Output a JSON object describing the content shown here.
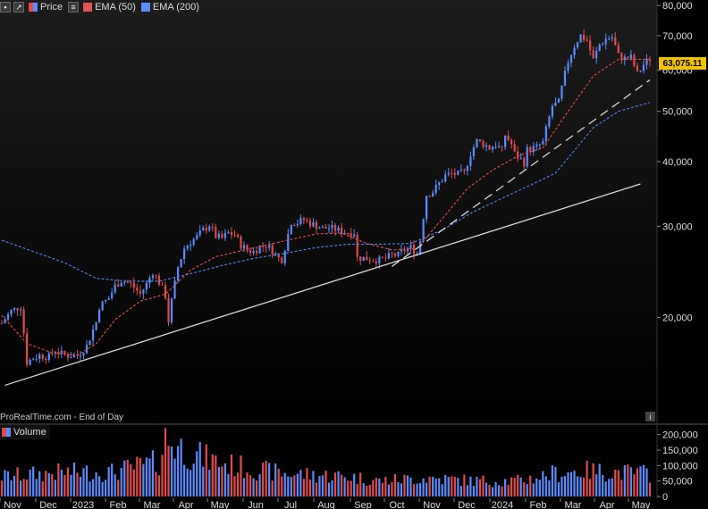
{
  "legend": {
    "items": [
      {
        "label": "Price",
        "color": "#5b8cff"
      },
      {
        "label": "EMA (50)",
        "color": "#e05555"
      },
      {
        "label": "EMA (200)",
        "color": "#5b8cff"
      }
    ]
  },
  "source_label": "ProRealTime.com - End of Day",
  "volume_label": "Volume",
  "last_price_label": "63,075.11",
  "info_icon": "i",
  "colors": {
    "up": "#5b8cff",
    "down": "#e24b4b",
    "ema50": "#d94848",
    "ema200": "#4f7fe0",
    "badge": "#f2c200"
  },
  "chart_data": {
    "type": "candlestick",
    "x_axis": {
      "labels": [
        "Nov",
        "Dec",
        "2023",
        "Feb",
        "Mar",
        "Apr",
        "May",
        "Jun",
        "Jul",
        "Aug",
        "Sep",
        "Oct",
        "Nov",
        "Dec",
        "2024",
        "Feb",
        "Mar",
        "Apr",
        "May"
      ]
    },
    "price_axis": {
      "scale": "log",
      "ticks": [
        {
          "value": 20000,
          "label": "20,000"
        },
        {
          "value": 30000,
          "label": "30,000"
        },
        {
          "value": 40000,
          "label": "40,000"
        },
        {
          "value": 50000,
          "label": "50,000"
        },
        {
          "value": 60000,
          "label": "60,000"
        },
        {
          "value": 70000,
          "label": "70,000"
        },
        {
          "value": 80000,
          "label": "80,000"
        }
      ],
      "ylim": [
        12500,
        82000
      ]
    },
    "volume_axis": {
      "ticks": [
        {
          "value": 0,
          "label": "0"
        },
        {
          "value": 50000,
          "label": "50,000"
        },
        {
          "value": 100000,
          "label": "100,000"
        },
        {
          "value": 150000,
          "label": "150,000"
        },
        {
          "value": 200000,
          "label": "200,000"
        }
      ],
      "ylim": [
        0,
        225000
      ]
    },
    "price_path": [
      [
        0,
        19500
      ],
      [
        3,
        20600
      ],
      [
        6,
        21000
      ],
      [
        8,
        16400
      ],
      [
        10,
        16700
      ],
      [
        12,
        16900
      ],
      [
        15,
        16800
      ],
      [
        17,
        17300
      ],
      [
        19,
        17000
      ],
      [
        21,
        16900
      ],
      [
        24,
        16900
      ],
      [
        27,
        17600
      ],
      [
        30,
        19600
      ],
      [
        31,
        21000
      ],
      [
        34,
        21800
      ],
      [
        36,
        23000
      ],
      [
        38,
        23600
      ],
      [
        41,
        23200
      ],
      [
        44,
        22200
      ],
      [
        46,
        23200
      ],
      [
        48,
        24500
      ],
      [
        50,
        23400
      ],
      [
        52,
        22000
      ],
      [
        53,
        19700
      ],
      [
        54,
        21500
      ],
      [
        56,
        25000
      ],
      [
        58,
        27200
      ],
      [
        60,
        28000
      ],
      [
        62,
        28600
      ],
      [
        64,
        29500
      ],
      [
        66,
        30200
      ],
      [
        68,
        28700
      ],
      [
        70,
        28400
      ],
      [
        72,
        29100
      ],
      [
        74,
        28900
      ],
      [
        76,
        27600
      ],
      [
        78,
        27000
      ],
      [
        80,
        26800
      ],
      [
        82,
        27400
      ],
      [
        84,
        27600
      ],
      [
        86,
        26900
      ],
      [
        88,
        26000
      ],
      [
        89,
        25900
      ],
      [
        90,
        27300
      ],
      [
        92,
        30600
      ],
      [
        94,
        30500
      ],
      [
        96,
        30900
      ],
      [
        98,
        30400
      ],
      [
        100,
        30100
      ],
      [
        102,
        29700
      ],
      [
        104,
        29800
      ],
      [
        106,
        29600
      ],
      [
        108,
        29300
      ],
      [
        110,
        29200
      ],
      [
        112,
        29200
      ],
      [
        113,
        26100
      ],
      [
        116,
        26000
      ],
      [
        118,
        25900
      ],
      [
        120,
        25800
      ],
      [
        122,
        26000
      ],
      [
        124,
        26400
      ],
      [
        126,
        26400
      ],
      [
        128,
        27000
      ],
      [
        130,
        27300
      ],
      [
        132,
        26600
      ],
      [
        133,
        28200
      ],
      [
        135,
        34500
      ],
      [
        137,
        35000
      ],
      [
        139,
        36300
      ],
      [
        141,
        37600
      ],
      [
        143,
        37900
      ],
      [
        145,
        37800
      ],
      [
        147,
        38000
      ],
      [
        149,
        41500
      ],
      [
        151,
        43800
      ],
      [
        153,
        43300
      ],
      [
        155,
        42500
      ],
      [
        157,
        43100
      ],
      [
        159,
        42000
      ],
      [
        160,
        45000
      ],
      [
        162,
        43200
      ],
      [
        163,
        41400
      ],
      [
        166,
        39800
      ],
      [
        167,
        42100
      ],
      [
        170,
        42600
      ],
      [
        172,
        43500
      ],
      [
        175,
        51200
      ],
      [
        177,
        52000
      ],
      [
        180,
        62500
      ],
      [
        182,
        67000
      ],
      [
        184,
        70000
      ],
      [
        186,
        68500
      ],
      [
        188,
        62800
      ],
      [
        190,
        67200
      ],
      [
        192,
        69000
      ],
      [
        194,
        69500
      ],
      [
        196,
        64000
      ],
      [
        198,
        63200
      ],
      [
        200,
        63500
      ],
      [
        202,
        59000
      ],
      [
        204,
        61500
      ],
      [
        206,
        63075
      ]
    ],
    "ema50": [
      [
        0,
        20200
      ],
      [
        8,
        17800
      ],
      [
        16,
        17100
      ],
      [
        24,
        16900
      ],
      [
        30,
        17800
      ],
      [
        36,
        19800
      ],
      [
        44,
        21500
      ],
      [
        52,
        22200
      ],
      [
        60,
        24700
      ],
      [
        68,
        26200
      ],
      [
        76,
        26900
      ],
      [
        84,
        27600
      ],
      [
        92,
        28300
      ],
      [
        100,
        29000
      ],
      [
        108,
        29100
      ],
      [
        116,
        27800
      ],
      [
        124,
        27000
      ],
      [
        132,
        27200
      ],
      [
        140,
        31000
      ],
      [
        148,
        35500
      ],
      [
        156,
        38500
      ],
      [
        164,
        41000
      ],
      [
        172,
        42500
      ],
      [
        180,
        50000
      ],
      [
        188,
        58500
      ],
      [
        196,
        63000
      ],
      [
        206,
        63000
      ]
    ],
    "ema200": [
      [
        0,
        28200
      ],
      [
        20,
        25500
      ],
      [
        30,
        23800
      ],
      [
        40,
        23500
      ],
      [
        50,
        23500
      ],
      [
        60,
        24300
      ],
      [
        70,
        25200
      ],
      [
        80,
        26000
      ],
      [
        90,
        26600
      ],
      [
        100,
        27300
      ],
      [
        110,
        27700
      ],
      [
        120,
        27700
      ],
      [
        130,
        27800
      ],
      [
        140,
        29500
      ],
      [
        150,
        32000
      ],
      [
        160,
        34200
      ],
      [
        170,
        36500
      ],
      [
        176,
        38000
      ],
      [
        182,
        42000
      ],
      [
        188,
        46500
      ],
      [
        196,
        50000
      ],
      [
        206,
        52000
      ]
    ],
    "trendlines": [
      {
        "style": "solid",
        "from": [
          1,
          14800
        ],
        "to": [
          203,
          36200
        ]
      },
      {
        "style": "dashed",
        "from": [
          124,
          25100
        ],
        "to": [
          206,
          57500
        ]
      }
    ],
    "volume_profile": [
      [
        0,
        70000
      ],
      [
        20,
        85000
      ],
      [
        35,
        85000
      ],
      [
        50,
        120000
      ],
      [
        52,
        200000
      ],
      [
        60,
        150000
      ],
      [
        70,
        115000
      ],
      [
        80,
        95000
      ],
      [
        90,
        80000
      ],
      [
        100,
        75000
      ],
      [
        110,
        70000
      ],
      [
        120,
        55000
      ],
      [
        135,
        65000
      ],
      [
        150,
        55000
      ],
      [
        165,
        55000
      ],
      [
        175,
        80000
      ],
      [
        185,
        90000
      ],
      [
        195,
        85000
      ],
      [
        206,
        80000
      ]
    ],
    "last_value": 63075.11
  }
}
